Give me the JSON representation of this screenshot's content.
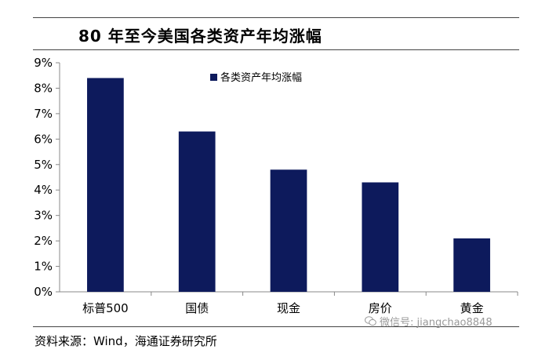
{
  "chart_data": {
    "type": "bar",
    "title": "80 年至今美国各类资产年均涨幅",
    "categories": [
      "标普500",
      "国债",
      "现金",
      "房价",
      "黄金"
    ],
    "series": [
      {
        "name": "各类资产年均涨幅",
        "values": [
          8.4,
          6.3,
          4.8,
          4.3,
          2.1
        ]
      }
    ],
    "yticks": [
      "0%",
      "1%",
      "2%",
      "3%",
      "4%",
      "5%",
      "6%",
      "7%",
      "8%",
      "9%"
    ],
    "ylim": [
      0,
      9
    ],
    "unit": "%",
    "legend_position": "top-center",
    "grid": false,
    "bar_color": "#0d1a5c"
  },
  "footer": {
    "source": "资料来源：Wind，海通证券研究所",
    "watermark": "微信号: jiangchao8848",
    "watermark_icon": "wechat-icon"
  }
}
